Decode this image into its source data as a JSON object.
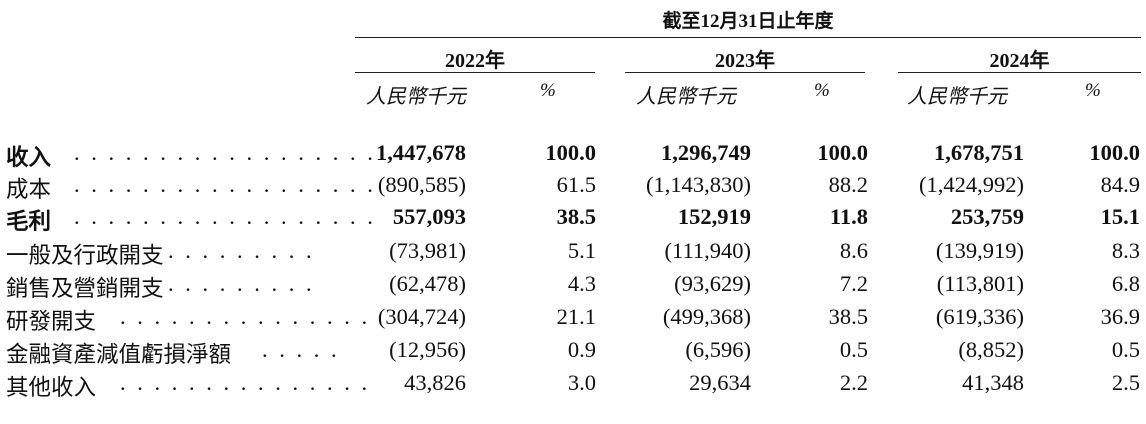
{
  "header": {
    "period": "截至12月31日止年度",
    "years": [
      "2022年",
      "2023年",
      "2024年"
    ],
    "unit_label": "人民幣千元",
    "percent_label": "%"
  },
  "rows": [
    {
      "label": "收入",
      "dots": ". . . . . . . . . . . . . . . . . .",
      "bold": true,
      "v2022": "1,447,678",
      "p2022": "100.0",
      "v2023": "1,296,749",
      "p2023": "100.0",
      "v2024": "1,678,751",
      "p2024": "100.0"
    },
    {
      "label": "成本",
      "dots": ". . . . . . . . . . . . . . . . . .",
      "bold": false,
      "v2022": "(890,585)",
      "p2022": "61.5",
      "v2023": "(1,143,830)",
      "p2023": "88.2",
      "v2024": "(1,424,992)",
      "p2024": "84.9"
    },
    {
      "label": "毛利",
      "dots": ". . . . . . . . . . . . . . . . . .",
      "bold": true,
      "v2022": "557,093",
      "p2022": "38.5",
      "v2023": "152,919",
      "p2023": "11.8",
      "v2024": "253,759",
      "p2024": "15.1"
    },
    {
      "label": "一般及行政開支",
      "dots": ". . . . . . . . .",
      "bold": false,
      "v2022": "(73,981)",
      "p2022": "5.1",
      "v2023": "(111,940)",
      "p2023": "8.6",
      "v2024": "(139,919)",
      "p2024": "8.3"
    },
    {
      "label": "銷售及營銷開支",
      "dots": ". . . . . . . . .",
      "bold": false,
      "v2022": "(62,478)",
      "p2022": "4.3",
      "v2023": "(93,629)",
      "p2023": "7.2",
      "v2024": "(113,801)",
      "p2024": "6.8"
    },
    {
      "label": "研發開支",
      "dots": ". . . . . . . . . . . . . . .",
      "bold": false,
      "v2022": "(304,724)",
      "p2022": "21.1",
      "v2023": "(499,368)",
      "p2023": "38.5",
      "v2024": "(619,336)",
      "p2024": "36.9"
    },
    {
      "label": "金融資產減值虧損淨額",
      "dots": ". . . . .",
      "bold": false,
      "v2022": "(12,956)",
      "p2022": "0.9",
      "v2023": "(6,596)",
      "p2023": "0.5",
      "v2024": "(8,852)",
      "p2024": "0.5"
    },
    {
      "label": "其他收入",
      "dots": ". . . . . . . . . . . . . . .",
      "bold": false,
      "v2022": "43,826",
      "p2022": "3.0",
      "v2023": "29,634",
      "p2023": "2.2",
      "v2024": "41,348",
      "p2024": "2.5"
    }
  ]
}
